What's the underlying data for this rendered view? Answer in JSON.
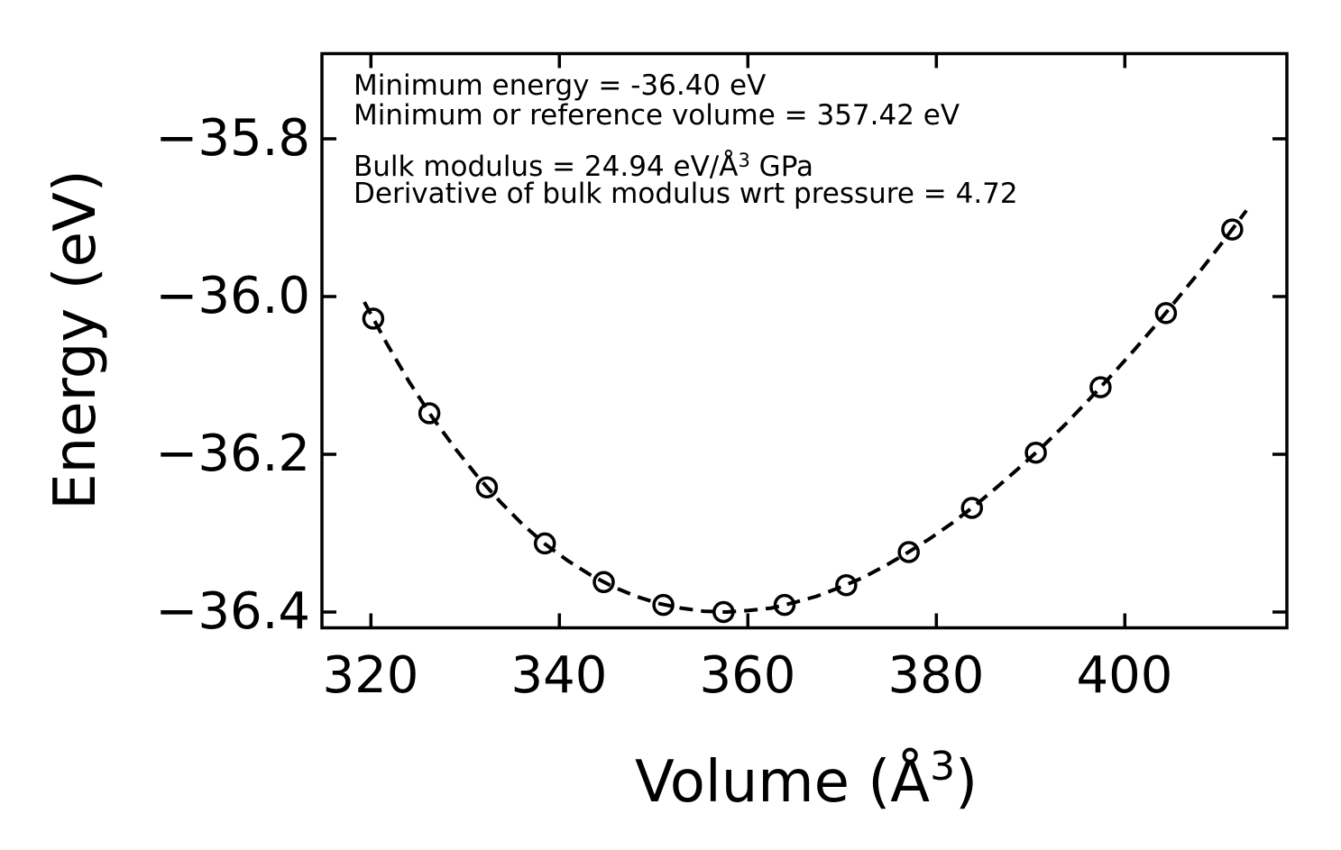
{
  "figure": {
    "background_color": "#ffffff",
    "foreground_color": "#000000",
    "annotation": {
      "line1": "Minimum energy = -36.40 eV",
      "line2": "Minimum or reference volume = 357.42 eV",
      "line3_pre": "Bulk modulus = 24.94 eV/Å",
      "line3_sup": "3",
      "line3_post": " GPa",
      "line4": "Derivative of bulk modulus wrt pressure = 4.72"
    },
    "xlabel_pre": "Volume (Å",
    "xlabel_sup": "3",
    "xlabel_post": ")",
    "ylabel": "Energy (eV)"
  },
  "chart_data": {
    "type": "scatter",
    "title": "",
    "xlabel": "Volume (Å³)",
    "ylabel": "Energy (eV)",
    "xlim": [
      314.8,
      417.2
    ],
    "ylim": [
      -36.42,
      -35.692
    ],
    "xticks": [
      320,
      340,
      360,
      380,
      400
    ],
    "xtick_labels": [
      "320",
      "340",
      "360",
      "380",
      "400"
    ],
    "yticks": [
      -35.8,
      -36.0,
      -36.2,
      -36.4
    ],
    "ytick_labels": [
      "−35.8",
      "−36.0",
      "−36.2",
      "−36.4"
    ],
    "grid": false,
    "legend": null,
    "tick_direction": "in",
    "annotation_text": [
      "Minimum energy = -36.40 eV",
      "Minimum or reference volume = 357.42 eV",
      "Bulk modulus = 24.94 eV/Å³ GPa",
      "Derivative of bulk modulus wrt pressure = 4.72"
    ],
    "eos_fit_parameters": {
      "minimum_energy_eV": -36.4,
      "minimum_or_reference_volume": 357.42,
      "bulk_modulus_GPa": 24.94,
      "bulk_modulus_derivative_wrt_pressure": 4.72
    },
    "points": {
      "marker": "open-circle",
      "color": "#000000",
      "volume": [
        320.25,
        326.2,
        332.3,
        338.46,
        344.71,
        351.03,
        357.42,
        363.89,
        370.44,
        377.07,
        383.78,
        390.56,
        397.43,
        404.37,
        411.4
      ],
      "energy": [
        -36.028,
        -36.148,
        -36.242,
        -36.313,
        -36.362,
        -36.391,
        -36.4,
        -36.391,
        -36.366,
        -36.324,
        -36.268,
        -36.198,
        -36.115,
        -36.021,
        -35.915
      ]
    },
    "fit_curve": {
      "style": "dashed",
      "color": "#000000",
      "volume": [
        319.3,
        321.7,
        324.1,
        326.5,
        328.9,
        331.3,
        333.7,
        336.1,
        338.5,
        340.9,
        343.3,
        345.7,
        348.1,
        350.5,
        352.9,
        355.3,
        357.7,
        360.1,
        362.5,
        364.9,
        367.3,
        369.7,
        372.1,
        374.5,
        376.9,
        379.3,
        381.7,
        384.1,
        386.5,
        388.9,
        391.3,
        393.7,
        396.1,
        398.5,
        400.9,
        403.3,
        405.7,
        408.1,
        410.5,
        412.9
      ],
      "energy": [
        -36.007,
        -36.06,
        -36.109,
        -36.153,
        -36.192,
        -36.228,
        -36.26,
        -36.289,
        -36.314,
        -36.335,
        -36.353,
        -36.368,
        -36.38,
        -36.389,
        -36.395,
        -36.399,
        -36.4,
        -36.398,
        -36.395,
        -36.388,
        -36.38,
        -36.369,
        -36.357,
        -36.342,
        -36.325,
        -36.307,
        -36.287,
        -36.265,
        -36.241,
        -36.216,
        -36.19,
        -36.162,
        -36.132,
        -36.101,
        -36.069,
        -36.036,
        -36.001,
        -35.966,
        -35.929,
        -35.891
      ]
    }
  }
}
